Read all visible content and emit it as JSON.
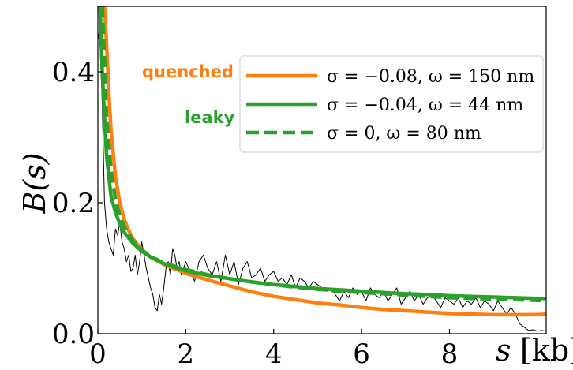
{
  "chart_data": {
    "type": "line",
    "ylabel": "B(s)",
    "xlabel_var": "s",
    "xlabel_unit": "[kb]",
    "xlim": [
      0,
      10.2
    ],
    "ylim": [
      0,
      0.5
    ],
    "xticks": [
      0,
      2,
      4,
      6,
      8
    ],
    "xtick_labels": [
      "0",
      "2",
      "4",
      "6",
      "8"
    ],
    "yticks": [
      0.0,
      0.2,
      0.4
    ],
    "ytick_labels": [
      "0.0",
      "0.2",
      "0.4"
    ],
    "grid": false,
    "legend_position": "upper-right",
    "side_labels": [
      {
        "text": "quenched",
        "color": "#ff7f0e"
      },
      {
        "text": "leaky",
        "color": "#2ca02c"
      }
    ],
    "series": [
      {
        "name": "σ = −0.08, ω = 150 nm",
        "color": "#ff7f0e",
        "style": "solid",
        "x": [
          0.15,
          0.2,
          0.25,
          0.3,
          0.4,
          0.5,
          0.6,
          0.7,
          0.8,
          1.0,
          1.2,
          1.5,
          2.0,
          2.5,
          3.0,
          3.5,
          4.0,
          4.5,
          5.0,
          5.5,
          6.0,
          6.5,
          7.0,
          7.5,
          8.0,
          8.5,
          9.0,
          9.5,
          10.0,
          10.2
        ],
        "y": [
          0.5,
          0.44,
          0.37,
          0.31,
          0.24,
          0.2,
          0.175,
          0.158,
          0.145,
          0.128,
          0.117,
          0.106,
          0.092,
          0.082,
          0.073,
          0.064,
          0.057,
          0.052,
          0.047,
          0.044,
          0.04,
          0.037,
          0.035,
          0.033,
          0.031,
          0.03,
          0.029,
          0.029,
          0.029,
          0.03
        ]
      },
      {
        "name": "σ = −0.04, ω = 44 nm",
        "color": "#2ca02c",
        "style": "solid",
        "x": [
          0.05,
          0.1,
          0.15,
          0.2,
          0.3,
          0.4,
          0.5,
          0.6,
          0.8,
          1.0,
          1.2,
          1.5,
          2.0,
          2.5,
          3.0,
          3.5,
          4.0,
          4.5,
          5.0,
          5.5,
          6.0,
          6.5,
          7.0,
          7.5,
          8.0,
          8.5,
          9.0,
          9.5,
          10.0,
          10.2
        ],
        "y": [
          0.5,
          0.4,
          0.33,
          0.27,
          0.21,
          0.185,
          0.168,
          0.155,
          0.138,
          0.126,
          0.117,
          0.107,
          0.096,
          0.089,
          0.084,
          0.079,
          0.075,
          0.072,
          0.069,
          0.067,
          0.065,
          0.063,
          0.061,
          0.06,
          0.058,
          0.057,
          0.056,
          0.055,
          0.054,
          0.054
        ]
      },
      {
        "name": "σ = 0, ω = 80 nm",
        "color": "#2ca02c",
        "style": "dashed",
        "x": [
          0.1,
          0.15,
          0.2,
          0.3,
          0.4,
          0.5,
          0.6,
          0.8,
          1.0,
          1.2,
          1.5,
          2.0,
          2.5,
          3.0,
          3.5,
          4.0,
          4.5,
          5.0,
          5.5,
          6.0,
          6.5,
          7.0,
          7.5,
          8.0,
          8.5,
          9.0,
          9.5,
          10.0,
          10.2
        ],
        "y": [
          0.5,
          0.42,
          0.33,
          0.25,
          0.205,
          0.18,
          0.163,
          0.142,
          0.128,
          0.118,
          0.108,
          0.098,
          0.09,
          0.084,
          0.079,
          0.075,
          0.071,
          0.068,
          0.065,
          0.063,
          0.061,
          0.059,
          0.057,
          0.055,
          0.054,
          0.053,
          0.052,
          0.051,
          0.051
        ]
      },
      {
        "name": "",
        "color": "#000000",
        "style": "thin",
        "x": [
          0.0,
          0.05,
          0.1,
          0.15,
          0.2,
          0.25,
          0.3,
          0.35,
          0.4,
          0.45,
          0.5,
          0.55,
          0.6,
          0.65,
          0.7,
          0.75,
          0.8,
          0.85,
          0.9,
          0.95,
          1.0,
          1.05,
          1.1,
          1.15,
          1.2,
          1.25,
          1.3,
          1.35,
          1.4,
          1.45,
          1.5,
          1.55,
          1.6,
          1.65,
          1.7,
          1.75,
          1.8,
          1.85,
          1.9,
          1.95,
          2.0,
          2.1,
          2.2,
          2.3,
          2.4,
          2.5,
          2.6,
          2.7,
          2.8,
          2.9,
          3.0,
          3.1,
          3.2,
          3.3,
          3.4,
          3.5,
          3.6,
          3.7,
          3.8,
          3.9,
          4.0,
          4.1,
          4.2,
          4.3,
          4.4,
          4.5,
          4.6,
          4.7,
          4.8,
          4.9,
          5.0,
          5.1,
          5.2,
          5.3,
          5.4,
          5.5,
          5.6,
          5.7,
          5.8,
          5.9,
          6.0,
          6.1,
          6.2,
          6.3,
          6.4,
          6.5,
          6.6,
          6.7,
          6.8,
          6.9,
          7.0,
          7.1,
          7.2,
          7.3,
          7.4,
          7.5,
          7.6,
          7.7,
          7.8,
          7.9,
          8.0,
          8.1,
          8.2,
          8.3,
          8.4,
          8.5,
          8.6,
          8.7,
          8.8,
          8.9,
          9.0,
          9.1,
          9.2,
          9.3,
          9.4,
          9.5,
          9.6,
          9.7,
          9.8,
          9.9,
          10.0,
          10.1,
          10.2
        ],
        "y": [
          0.46,
          0.44,
          0.35,
          0.2,
          0.16,
          0.14,
          0.13,
          0.12,
          0.16,
          0.15,
          0.17,
          0.14,
          0.13,
          0.11,
          0.12,
          0.095,
          0.1,
          0.12,
          0.09,
          0.11,
          0.14,
          0.12,
          0.1,
          0.085,
          0.07,
          0.06,
          0.04,
          0.035,
          0.06,
          0.045,
          0.07,
          0.1,
          0.11,
          0.09,
          0.13,
          0.12,
          0.1,
          0.11,
          0.09,
          0.1,
          0.11,
          0.095,
          0.08,
          0.11,
          0.12,
          0.1,
          0.09,
          0.11,
          0.08,
          0.12,
          0.09,
          0.11,
          0.075,
          0.1,
          0.11,
          0.085,
          0.09,
          0.1,
          0.08,
          0.09,
          0.095,
          0.08,
          0.085,
          0.075,
          0.09,
          0.07,
          0.085,
          0.08,
          0.07,
          0.08,
          0.075,
          0.07,
          0.065,
          0.07,
          0.06,
          0.05,
          0.065,
          0.055,
          0.07,
          0.06,
          0.065,
          0.05,
          0.07,
          0.06,
          0.055,
          0.065,
          0.05,
          0.06,
          0.07,
          0.045,
          0.055,
          0.065,
          0.05,
          0.06,
          0.045,
          0.055,
          0.06,
          0.05,
          0.04,
          0.055,
          0.05,
          0.045,
          0.055,
          0.04,
          0.05,
          0.045,
          0.055,
          0.04,
          0.05,
          0.045,
          0.035,
          0.05,
          0.04,
          0.03,
          0.04,
          0.03,
          0.015,
          0.01,
          0.005,
          0.006,
          0.004,
          0.005,
          0.004
        ]
      }
    ]
  }
}
